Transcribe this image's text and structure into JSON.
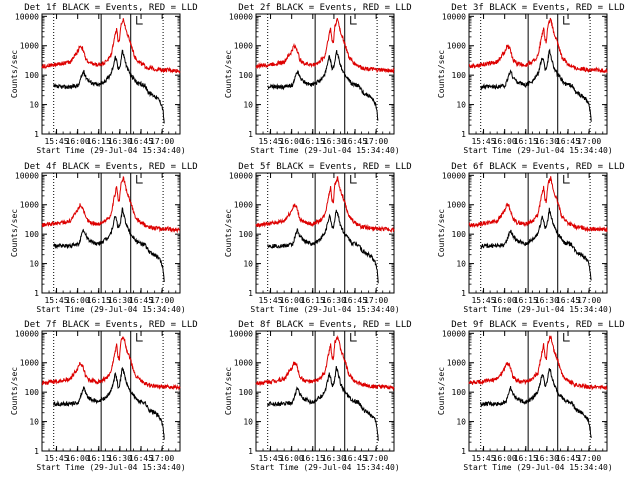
{
  "figure": {
    "layout": "3x3 grid of panels"
  },
  "chart_data": [
    {
      "type": "line",
      "title": "Det 1f BLACK = Events, RED = LLD",
      "seed": 1
    },
    {
      "type": "line",
      "title": "Det 2f BLACK = Events, RED = LLD",
      "seed": 2
    },
    {
      "type": "line",
      "title": "Det 3f BLACK = Events, RED = LLD",
      "seed": 3
    },
    {
      "type": "line",
      "title": "Det 4f BLACK = Events, RED = LLD",
      "seed": 4
    },
    {
      "type": "line",
      "title": "Det 5f BLACK = Events, RED = LLD",
      "seed": 5
    },
    {
      "type": "line",
      "title": "Det 6f BLACK = Events, RED = LLD",
      "seed": 6
    },
    {
      "type": "line",
      "title": "Det 7f BLACK = Events, RED = LLD",
      "seed": 7
    },
    {
      "type": "line",
      "title": "Det 8f BLACK = Events, RED = LLD",
      "seed": 8
    },
    {
      "type": "line",
      "title": "Det 9f BLACK = Events, RED = LLD",
      "seed": 9
    }
  ],
  "shared": {
    "xlabel": "Start Time (29-Jul-04 15:34:40)",
    "ylabel": "Counts/sec",
    "x_ticks": [
      "15:45",
      "16:00",
      "16:15",
      "16:30",
      "16:45",
      "17:00"
    ],
    "x_tick_minutes": [
      10.33,
      25.33,
      40.33,
      55.33,
      70.33,
      85.33
    ],
    "xlim_minutes": [
      0,
      98
    ],
    "y_ticks": [
      "1",
      "10",
      "100",
      "1000",
      "10000"
    ],
    "y_tick_values": [
      1,
      10,
      100,
      1000,
      10000
    ],
    "ylim": [
      1,
      12000
    ],
    "yscale": "log",
    "dotted_vlines_minutes": [
      8.3,
      86.0
    ],
    "solid_vlines_minutes": [
      42.0,
      63.0
    ],
    "colors": {
      "events": "#000000",
      "lld": "#dd0000",
      "axis": "#000000"
    },
    "series": [
      {
        "name": "Events",
        "color": "#000000",
        "keypoints_minutes": [
          8.3,
          20,
          26,
          28,
          29.5,
          31,
          34,
          40,
          46,
          49,
          51,
          52,
          53,
          54,
          55,
          56,
          57,
          58,
          60,
          63,
          66,
          68,
          73,
          76,
          80,
          83,
          85,
          86,
          87
        ],
        "keypoints_values": [
          40,
          40,
          45,
          90,
          140,
          90,
          60,
          45,
          70,
          110,
          250,
          420,
          300,
          160,
          180,
          300,
          700,
          500,
          200,
          100,
          70,
          50,
          45,
          25,
          20,
          15,
          10,
          6,
          2
        ]
      },
      {
        "name": "LLD",
        "color": "#dd0000",
        "keypoints_minutes": [
          0,
          10,
          20,
          25,
          27,
          29,
          31,
          34,
          40,
          45,
          49,
          51,
          53,
          54,
          55,
          56,
          58,
          60,
          63,
          66,
          70,
          75,
          85,
          90,
          98
        ],
        "keypoints_values": [
          200,
          230,
          280,
          600,
          1000,
          800,
          350,
          250,
          220,
          280,
          450,
          1500,
          4000,
          1500,
          1300,
          5000,
          8000,
          3000,
          1200,
          400,
          250,
          180,
          150,
          150,
          140
        ]
      }
    ]
  }
}
